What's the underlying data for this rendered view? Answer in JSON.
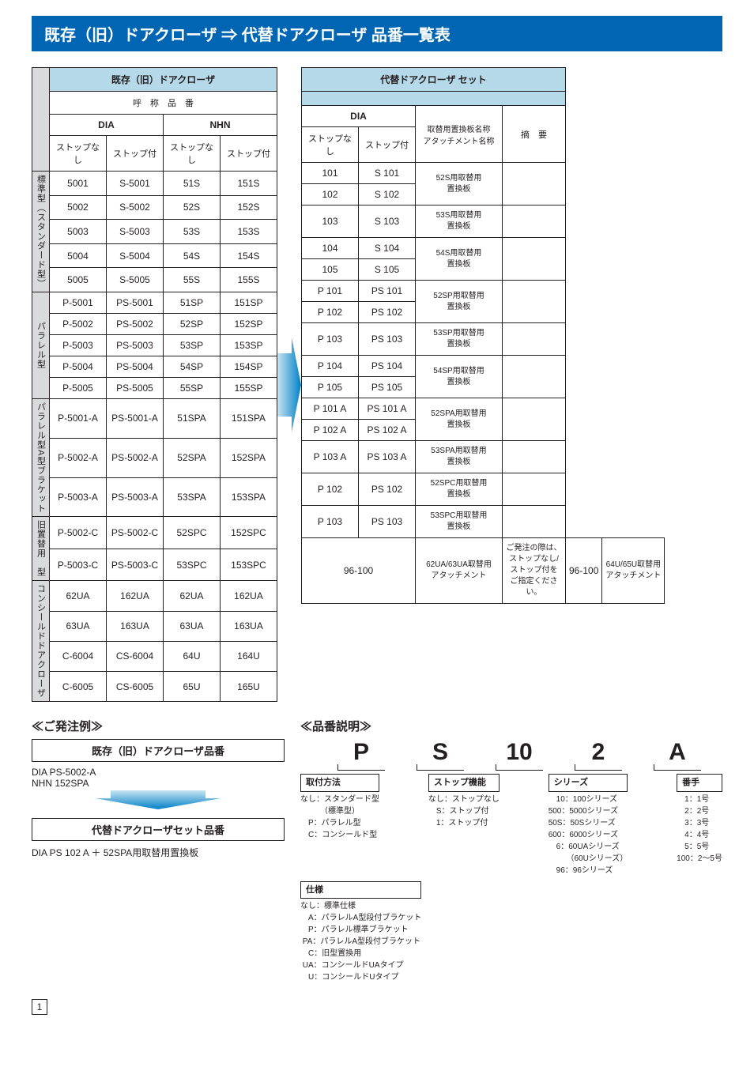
{
  "title": "既存（旧）ドアクローザ ⇒ 代替ドアクローザ 品番一覧表",
  "left_table": {
    "top_header": "既存（旧）ドアクローザ",
    "sub_header": "呼　称　品　番",
    "brand1": "DIA",
    "brand2": "NHN",
    "sub_cols": [
      "ストップなし",
      "ストップ付",
      "ストップなし",
      "ストップ付"
    ],
    "groups": [
      {
        "label": "標準型（スタンダード型）",
        "rows": [
          [
            "5001",
            "S-5001",
            "51S",
            "151S"
          ],
          [
            "5002",
            "S-5002",
            "52S",
            "152S"
          ],
          [
            "5003",
            "S-5003",
            "53S",
            "153S"
          ],
          [
            "5004",
            "S-5004",
            "54S",
            "154S"
          ],
          [
            "5005",
            "S-5005",
            "55S",
            "155S"
          ]
        ]
      },
      {
        "label": "パラレル型",
        "rows": [
          [
            "P-5001",
            "PS-5001",
            "51SP",
            "151SP"
          ],
          [
            "P-5002",
            "PS-5002",
            "52SP",
            "152SP"
          ],
          [
            "P-5003",
            "PS-5003",
            "53SP",
            "153SP"
          ],
          [
            "P-5004",
            "PS-5004",
            "54SP",
            "154SP"
          ],
          [
            "P-5005",
            "PS-5005",
            "55SP",
            "155SP"
          ]
        ]
      },
      {
        "label": "パラレル型\nA型ブラケット",
        "rows": [
          [
            "P-5001-A",
            "PS-5001-A",
            "51SPA",
            "151SPA"
          ],
          [
            "P-5002-A",
            "PS-5002-A",
            "52SPA",
            "152SPA"
          ],
          [
            "P-5003-A",
            "PS-5003-A",
            "53SPA",
            "153SPA"
          ]
        ]
      },
      {
        "label": "旧置替用\n　型",
        "rows": [
          [
            "P-5002-C",
            "PS-5002-C",
            "52SPC",
            "152SPC"
          ],
          [
            "P-5003-C",
            "PS-5003-C",
            "53SPC",
            "153SPC"
          ]
        ]
      },
      {
        "label": "コンシールド\nドアクローザ",
        "rows": [
          [
            "62UA",
            "162UA",
            "62UA",
            "162UA"
          ],
          [
            "63UA",
            "163UA",
            "63UA",
            "163UA"
          ],
          [
            "C-6004",
            "CS-6004",
            "64U",
            "164U"
          ],
          [
            "C-6005",
            "CS-6005",
            "65U",
            "165U"
          ]
        ]
      }
    ]
  },
  "right_table": {
    "top_header": "代替ドアクローザ セット",
    "brand": "DIA",
    "h_plate": "取替用置換板名称\nアタッチメント名称",
    "h_note": "摘　要",
    "sub_cols": [
      "ストップなし",
      "ストップ付"
    ],
    "rows": [
      {
        "c": [
          "101",
          "S 101"
        ],
        "plate": "52S用取替用\n置換板",
        "note": "",
        "pspan": 2
      },
      {
        "c": [
          "102",
          "S 102"
        ]
      },
      {
        "c": [
          "103",
          "S 103"
        ],
        "plate": "53S用取替用\n置換板",
        "pspan": 1
      },
      {
        "c": [
          "104",
          "S 104"
        ],
        "plate": "54S用取替用\n置換板",
        "pspan": 2
      },
      {
        "c": [
          "105",
          "S 105"
        ]
      },
      {
        "c": [
          "P 101",
          "PS 101"
        ],
        "plate": "52SP用取替用\n置換板",
        "pspan": 2
      },
      {
        "c": [
          "P 102",
          "PS 102"
        ]
      },
      {
        "c": [
          "P 103",
          "PS 103"
        ],
        "plate": "53SP用取替用\n置換板",
        "pspan": 1
      },
      {
        "c": [
          "P 104",
          "PS 104"
        ],
        "plate": "54SP用取替用\n置換板",
        "pspan": 2
      },
      {
        "c": [
          "P 105",
          "PS 105"
        ]
      },
      {
        "c": [
          "P 101 A",
          "PS 101 A"
        ],
        "plate": "52SPA用取替用\n置換板",
        "pspan": 2
      },
      {
        "c": [
          "P 102 A",
          "PS 102 A"
        ]
      },
      {
        "c": [
          "P 103 A",
          "PS 103 A"
        ],
        "plate": "53SPA用取替用\n置換板",
        "pspan": 1
      },
      {
        "c": [
          "P 102",
          "PS 102"
        ],
        "plate": "52SPC用取替用\n置換板",
        "pspan": 1
      },
      {
        "c": [
          "P 103",
          "PS 103"
        ],
        "plate": "53SPC用取替用\n置換板",
        "pspan": 1
      },
      {
        "merged": "96-100",
        "plate": "62UA/63UA取替用\nアタッチメント",
        "note": "ご発注の際は、\nストップなし/\nストップ付を\nご指定ください。",
        "pspan": 2,
        "mspan": 2,
        "nspan": 4
      },
      {
        "skip": true
      },
      {
        "merged": "96-100",
        "plate": "64U/65U取替用\nアタッチメント",
        "pspan": 2,
        "mspan": 2
      },
      {
        "skip": true
      }
    ]
  },
  "order": {
    "h1": "≪ご発注例≫",
    "box1": "既存（旧）ドアクローザ品番",
    "l1": "DIA PS-5002-A",
    "l2": "NHN 152SPA",
    "box2": "代替ドアクローザセット品番",
    "l3": "DIA PS 102 A ＋ 52SPA用取替用置換板"
  },
  "explain": {
    "h": "≪品番説明≫",
    "code": [
      "P",
      "S",
      "10",
      "2",
      "A"
    ],
    "parts": [
      {
        "t": "取付方法",
        "d": "なし：スタンダード型\n　　　（標準型）\n　P：パラレル型\n　C：コンシールド型"
      },
      {
        "t": "ストップ機能",
        "d": "なし：ストップなし\n　S：ストップ付\n　1：ストップ付"
      },
      {
        "t": "シリーズ",
        "d": "　10：100シリーズ\n500：5000シリーズ\n50S：50Sシリーズ\n600：6000シリーズ\n　6：60UAシリーズ\n　　 （60Uシリーズ）\n　96：96シリーズ"
      },
      {
        "t": "番手",
        "d": "　1：1号\n　2：2号\n　3：3号\n　4：4号\n　5：5号\n100：2～5号"
      },
      {
        "t": "仕様",
        "d": "なし：標準仕様\n　A：パラレルA型段付ブラケット\n　P：パラレル標準ブラケット\n PA：パラレルA型段付ブラケット\n　C：旧型置換用\n UA：コンシールドUAタイプ\n　U：コンシールドUタイプ"
      }
    ]
  },
  "page": "1"
}
